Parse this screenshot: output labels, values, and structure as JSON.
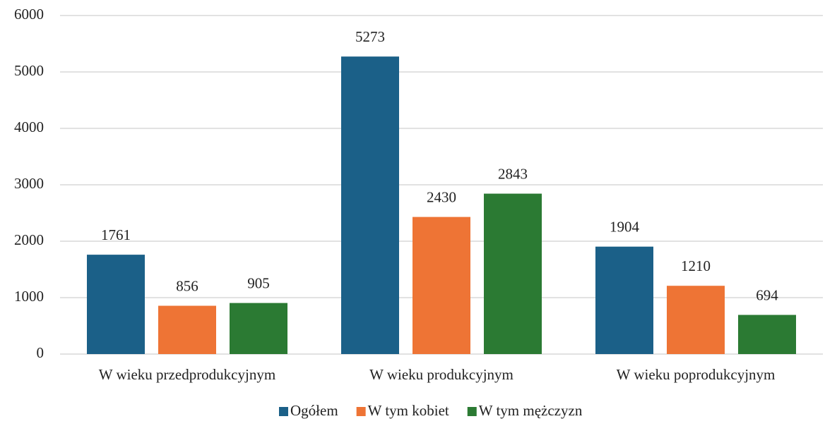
{
  "chart_data": {
    "type": "bar",
    "categories": [
      "W wieku przedprodukcyjnym",
      "W wieku produkcyjnym",
      "W wieku poprodukcyjnym"
    ],
    "series": [
      {
        "name": "Ogółem",
        "color": "#1b6088",
        "values": [
          1761,
          5273,
          1904
        ]
      },
      {
        "name": "W tym kobiet",
        "color": "#ee7435",
        "values": [
          856,
          2430,
          1210
        ]
      },
      {
        "name": "W tym mężczyzn",
        "color": "#2b7a33",
        "values": [
          905,
          2843,
          694
        ]
      }
    ],
    "ylim": [
      0,
      6000
    ],
    "yticks": [
      0,
      1000,
      2000,
      3000,
      4000,
      5000,
      6000
    ],
    "grid": true,
    "legend": "bottom"
  }
}
